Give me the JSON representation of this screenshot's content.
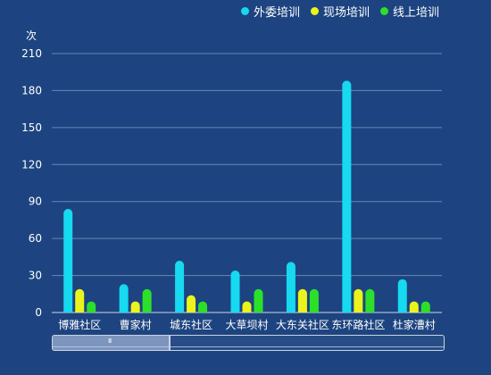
{
  "chart_data": {
    "type": "bar",
    "unit_label": "次",
    "categories": [
      "博雅社区",
      "曹家村",
      "城东社区",
      "大草坝村",
      "大东关社区",
      "东环路社区",
      "杜家漕村"
    ],
    "series": [
      {
        "name": "外委培训",
        "color": "#17d9f0",
        "values": [
          84,
          23,
          42,
          34,
          41,
          188,
          27
        ]
      },
      {
        "name": "现场培训",
        "color": "#eaf41c",
        "values": [
          19,
          9,
          14,
          9,
          19,
          19,
          9
        ]
      },
      {
        "name": "线上培训",
        "color": "#2ce02a",
        "values": [
          9,
          19,
          9,
          19,
          19,
          19,
          9
        ]
      }
    ],
    "ylim": [
      0,
      210
    ],
    "yticks": [
      0,
      30,
      60,
      90,
      120,
      150,
      180,
      210
    ],
    "grid": true,
    "legend_position": "top-right"
  },
  "zoom": {
    "start_fraction": 0.0,
    "end_fraction": 0.3,
    "grip_label": "III"
  }
}
